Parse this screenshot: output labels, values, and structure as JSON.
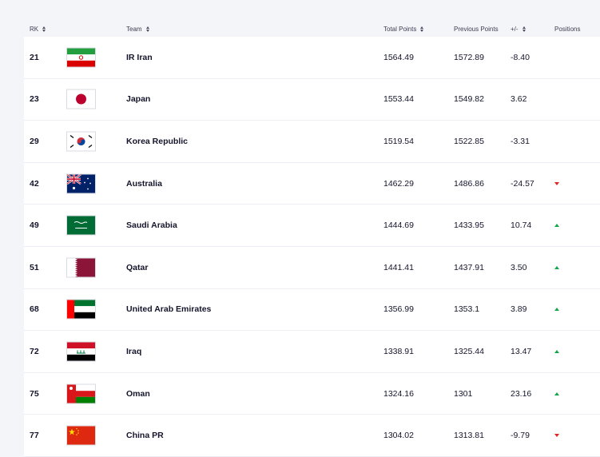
{
  "header": {
    "rk": "RK",
    "team": "Team",
    "total_points": "Total Points",
    "previous_points": "Previous Points",
    "diff": "+/-",
    "positions": "Positions"
  },
  "rows": [
    {
      "rk": "21",
      "team": "IR Iran",
      "total": "1564.49",
      "previous": "1572.89",
      "diff": "-8.40",
      "trend": "none",
      "flag": "iran-flag-icon"
    },
    {
      "rk": "23",
      "team": "Japan",
      "total": "1553.44",
      "previous": "1549.82",
      "diff": "3.62",
      "trend": "none",
      "flag": "japan-flag-icon"
    },
    {
      "rk": "29",
      "team": "Korea Republic",
      "total": "1519.54",
      "previous": "1522.85",
      "diff": "-3.31",
      "trend": "none",
      "flag": "korea-flag-icon"
    },
    {
      "rk": "42",
      "team": "Australia",
      "total": "1462.29",
      "previous": "1486.86",
      "diff": "-24.57",
      "trend": "down",
      "flag": "australia-flag-icon"
    },
    {
      "rk": "49",
      "team": "Saudi Arabia",
      "total": "1444.69",
      "previous": "1433.95",
      "diff": "10.74",
      "trend": "up",
      "flag": "saudi-flag-icon"
    },
    {
      "rk": "51",
      "team": "Qatar",
      "total": "1441.41",
      "previous": "1437.91",
      "diff": "3.50",
      "trend": "up",
      "flag": "qatar-flag-icon"
    },
    {
      "rk": "68",
      "team": "United Arab Emirates",
      "total": "1356.99",
      "previous": "1353.1",
      "diff": "3.89",
      "trend": "up",
      "flag": "uae-flag-icon"
    },
    {
      "rk": "72",
      "team": "Iraq",
      "total": "1338.91",
      "previous": "1325.44",
      "diff": "13.47",
      "trend": "up",
      "flag": "iraq-flag-icon"
    },
    {
      "rk": "75",
      "team": "Oman",
      "total": "1324.16",
      "previous": "1301",
      "diff": "23.16",
      "trend": "up",
      "flag": "oman-flag-icon"
    },
    {
      "rk": "77",
      "team": "China PR",
      "total": "1304.02",
      "previous": "1313.81",
      "diff": "-9.79",
      "trend": "down",
      "flag": "china-flag-icon"
    }
  ],
  "colors": {
    "up": "#16a34a",
    "down": "#dc2626",
    "row_bg": "#ffffff",
    "page_bg": "#f4f5f8"
  }
}
